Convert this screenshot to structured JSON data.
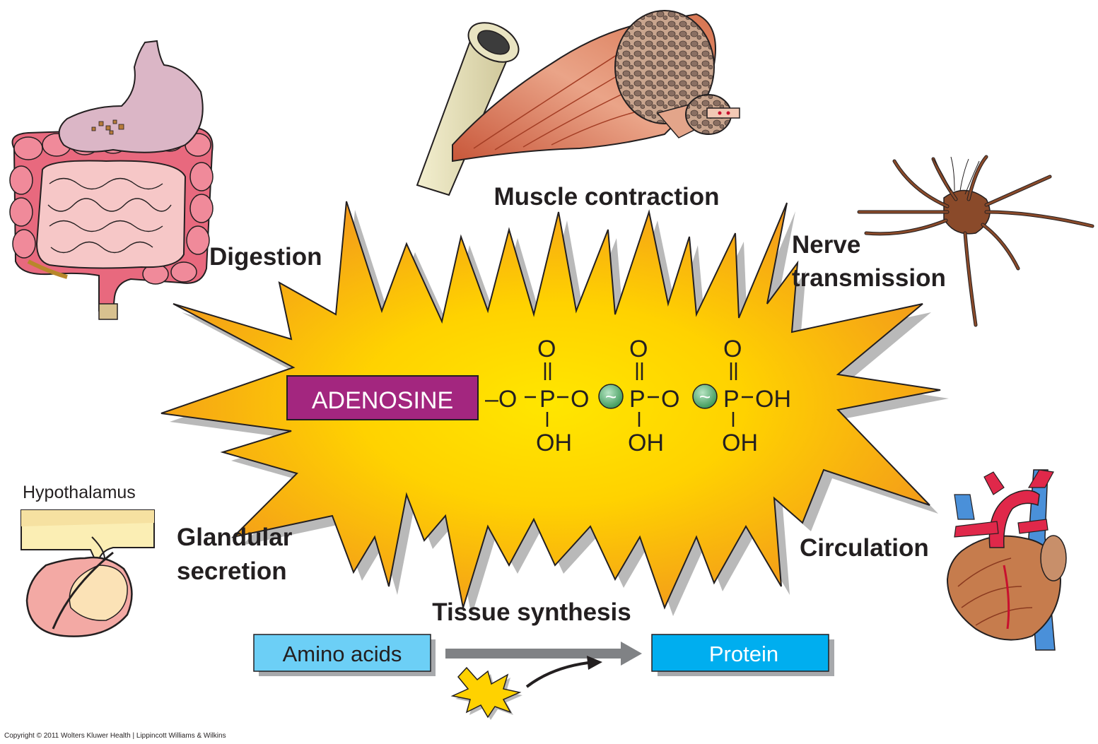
{
  "center": {
    "adenosine_label": "ADENOSINE",
    "formula": {
      "o_top": "O",
      "p": "P",
      "o": "O",
      "oh": "OH",
      "dash_o": "–O",
      "tilde": "~"
    }
  },
  "labels": {
    "muscle": "Muscle contraction",
    "digestion": "Digestion",
    "nerve_line1": "Nerve",
    "nerve_line2": "transmission",
    "hypothalamus": "Hypothalamus",
    "glandular_line1": "Glandular",
    "glandular_line2": "secretion",
    "circulation": "Circulation",
    "tissue": "Tissue synthesis"
  },
  "synthesis": {
    "input": "Amino acids",
    "output": "Protein"
  },
  "copyright": "Copyright © 2011 Wolters Kluwer Health | Lippincott Williams & Wilkins",
  "colors": {
    "burst_center": "#ffe600",
    "burst_edge": "#f39a1b",
    "adenosine_box": "#a3267f",
    "high_energy_bond": "#4cae6a",
    "amino_box": "#6ccff6",
    "protein_box": "#00aeef",
    "arrow": "#808285"
  },
  "icons": [
    "intestine-illustration",
    "muscle-bone-illustration",
    "neuron-illustration",
    "pituitary-illustration",
    "heart-illustration"
  ]
}
